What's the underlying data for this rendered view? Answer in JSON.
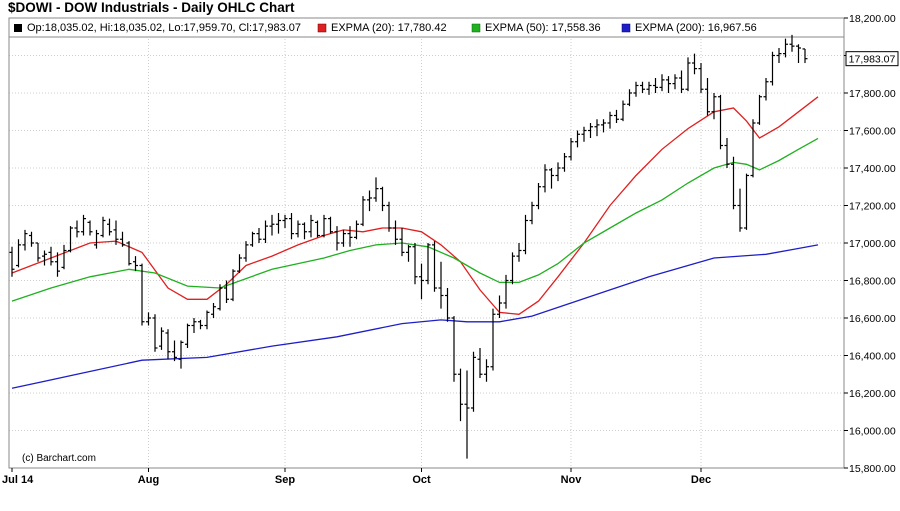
{
  "header": {
    "title": "$DOWI - DOW Industrials - Daily OHLC Chart"
  },
  "legend": {
    "ohlc_text": "Op:18,035.02, Hi:18,035.02, Lo:17,959.70, Cl:17,983.07",
    "ema20": "EXPMA (20): 17,780.42",
    "ema50": "EXPMA (50): 17,558.36",
    "ema200": "EXPMA (200): 16,967.56"
  },
  "watermark": "(c) Barchart.com",
  "last_price_label": "17,983.07",
  "chart_data": {
    "type": "ohlc",
    "ylim": [
      15800,
      18200
    ],
    "y_ticks": [
      "18,200.00",
      "18,000.00",
      "17,800.00",
      "17,600.00",
      "17,400.00",
      "17,200.00",
      "17,000.00",
      "16,800.00",
      "16,600.00",
      "16,400.00",
      "16,200.00",
      "16,000.00",
      "15,800.00"
    ],
    "x_months": [
      "Jul 14",
      "Aug",
      "Sep",
      "Oct",
      "Nov",
      "Dec"
    ],
    "month_start_index": [
      0,
      21,
      42,
      63,
      86,
      106
    ],
    "grid": true,
    "last_close": 17983.07,
    "series": [
      {
        "name": "EXPMA (20)",
        "color": "#e02020",
        "points": [
          [
            0,
            16840
          ],
          [
            6,
            16920
          ],
          [
            12,
            17000
          ],
          [
            16,
            17010
          ],
          [
            20,
            16950
          ],
          [
            24,
            16760
          ],
          [
            27,
            16700
          ],
          [
            30,
            16700
          ],
          [
            33,
            16780
          ],
          [
            36,
            16880
          ],
          [
            40,
            16930
          ],
          [
            44,
            16990
          ],
          [
            48,
            17040
          ],
          [
            51,
            17070
          ],
          [
            54,
            17060
          ],
          [
            57,
            17080
          ],
          [
            60,
            17080
          ],
          [
            63,
            17060
          ],
          [
            66,
            16990
          ],
          [
            69,
            16900
          ],
          [
            72,
            16750
          ],
          [
            75,
            16630
          ],
          [
            78,
            16620
          ],
          [
            81,
            16690
          ],
          [
            84,
            16820
          ],
          [
            88,
            17000
          ],
          [
            92,
            17200
          ],
          [
            96,
            17360
          ],
          [
            100,
            17500
          ],
          [
            104,
            17610
          ],
          [
            108,
            17700
          ],
          [
            111,
            17720
          ],
          [
            113,
            17650
          ],
          [
            115,
            17560
          ],
          [
            118,
            17620
          ],
          [
            121,
            17700
          ],
          [
            124,
            17780
          ]
        ]
      },
      {
        "name": "EXPMA (50)",
        "color": "#20b020",
        "points": [
          [
            0,
            16690
          ],
          [
            6,
            16760
          ],
          [
            12,
            16820
          ],
          [
            18,
            16860
          ],
          [
            22,
            16840
          ],
          [
            27,
            16770
          ],
          [
            32,
            16760
          ],
          [
            36,
            16810
          ],
          [
            40,
            16860
          ],
          [
            44,
            16890
          ],
          [
            48,
            16920
          ],
          [
            52,
            16960
          ],
          [
            56,
            16990
          ],
          [
            60,
            17000
          ],
          [
            64,
            16980
          ],
          [
            68,
            16920
          ],
          [
            72,
            16840
          ],
          [
            75,
            16790
          ],
          [
            78,
            16790
          ],
          [
            81,
            16830
          ],
          [
            84,
            16890
          ],
          [
            88,
            17000
          ],
          [
            92,
            17080
          ],
          [
            96,
            17160
          ],
          [
            100,
            17230
          ],
          [
            104,
            17320
          ],
          [
            108,
            17400
          ],
          [
            111,
            17430
          ],
          [
            113,
            17420
          ],
          [
            115,
            17390
          ],
          [
            118,
            17440
          ],
          [
            121,
            17500
          ],
          [
            124,
            17558
          ]
        ]
      },
      {
        "name": "EXPMA (200)",
        "color": "#1e1ec8",
        "points": [
          [
            0,
            16225
          ],
          [
            10,
            16300
          ],
          [
            20,
            16375
          ],
          [
            30,
            16390
          ],
          [
            40,
            16450
          ],
          [
            50,
            16500
          ],
          [
            60,
            16570
          ],
          [
            66,
            16590
          ],
          [
            70,
            16580
          ],
          [
            75,
            16580
          ],
          [
            80,
            16610
          ],
          [
            86,
            16680
          ],
          [
            92,
            16750
          ],
          [
            98,
            16820
          ],
          [
            104,
            16880
          ],
          [
            108,
            16920
          ],
          [
            112,
            16930
          ],
          [
            116,
            16940
          ],
          [
            120,
            16965
          ],
          [
            124,
            16990
          ]
        ]
      }
    ],
    "bars": [
      [
        16950,
        16980,
        16820,
        16860
      ],
      [
        16880,
        17020,
        16870,
        16990
      ],
      [
        16990,
        17070,
        16960,
        17050
      ],
      [
        17040,
        17060,
        16980,
        17000
      ],
      [
        17000,
        17000,
        16900,
        16920
      ],
      [
        16930,
        16960,
        16880,
        16940
      ],
      [
        16950,
        16980,
        16880,
        16900
      ],
      [
        16900,
        16950,
        16820,
        16850
      ],
      [
        16870,
        16990,
        16860,
        16960
      ],
      [
        16960,
        17090,
        16950,
        17080
      ],
      [
        17080,
        17120,
        17030,
        17060
      ],
      [
        17060,
        17150,
        17040,
        17130
      ],
      [
        17110,
        17120,
        17040,
        17060
      ],
      [
        16990,
        17070,
        16970,
        17050
      ],
      [
        17040,
        17140,
        17030,
        17120
      ],
      [
        17100,
        17130,
        17040,
        17060
      ],
      [
        17070,
        17120,
        16990,
        17020
      ],
      [
        17020,
        17060,
        16980,
        16990
      ],
      [
        17000,
        17010,
        16880,
        16890
      ],
      [
        16900,
        16930,
        16850,
        16880
      ],
      [
        16880,
        16890,
        16560,
        16580
      ],
      [
        16580,
        16630,
        16560,
        16600
      ],
      [
        16600,
        16620,
        16420,
        16440
      ],
      [
        16450,
        16550,
        16430,
        16530
      ],
      [
        16520,
        16540,
        16380,
        16420
      ],
      [
        16420,
        16480,
        16370,
        16390
      ],
      [
        16380,
        16480,
        16330,
        16470
      ],
      [
        16460,
        16570,
        16440,
        16560
      ],
      [
        16560,
        16600,
        16520,
        16580
      ],
      [
        16580,
        16590,
        16540,
        16560
      ],
      [
        16560,
        16640,
        16540,
        16630
      ],
      [
        16620,
        16680,
        16600,
        16660
      ],
      [
        16650,
        16780,
        16640,
        16760
      ],
      [
        16760,
        16800,
        16680,
        16700
      ],
      [
        16700,
        16860,
        16690,
        16850
      ],
      [
        16850,
        16940,
        16840,
        16920
      ],
      [
        16920,
        17010,
        16900,
        16990
      ],
      [
        16990,
        17060,
        16980,
        17050
      ],
      [
        17050,
        17080,
        17000,
        17020
      ],
      [
        17020,
        17120,
        17000,
        17090
      ],
      [
        17090,
        17150,
        17040,
        17100
      ],
      [
        17100,
        17160,
        17050,
        17120
      ],
      [
        17120,
        17150,
        17080,
        17130
      ],
      [
        17130,
        17160,
        17020,
        17050
      ],
      [
        17050,
        17120,
        17030,
        17100
      ],
      [
        17100,
        17110,
        17020,
        17060
      ],
      [
        17060,
        17150,
        17030,
        17120
      ],
      [
        17110,
        17120,
        17030,
        17040
      ],
      [
        17040,
        17150,
        17030,
        17130
      ],
      [
        17130,
        17140,
        17050,
        17060
      ],
      [
        17060,
        17090,
        16960,
        17000
      ],
      [
        17000,
        17070,
        16980,
        17050
      ],
      [
        17050,
        17090,
        16980,
        17030
      ],
      [
        17030,
        17120,
        17020,
        17100
      ],
      [
        17100,
        17250,
        17090,
        17230
      ],
      [
        17230,
        17280,
        17170,
        17240
      ],
      [
        17240,
        17350,
        17220,
        17290
      ],
      [
        17290,
        17300,
        17170,
        17200
      ],
      [
        17200,
        17220,
        17060,
        17080
      ],
      [
        17080,
        17120,
        16990,
        17020
      ],
      [
        17020,
        17080,
        16930,
        16950
      ],
      [
        16950,
        16990,
        16900,
        16980
      ],
      [
        16980,
        17000,
        16780,
        16820
      ],
      [
        16820,
        16890,
        16700,
        16800
      ],
      [
        16800,
        17000,
        16780,
        16990
      ],
      [
        16990,
        17010,
        16740,
        16760
      ],
      [
        16760,
        16900,
        16650,
        16720
      ],
      [
        16720,
        16760,
        16580,
        16600
      ],
      [
        16600,
        16610,
        16260,
        16300
      ],
      [
        16300,
        16330,
        16050,
        16140
      ],
      [
        16140,
        16320,
        15850,
        16120
      ],
      [
        16120,
        16420,
        16100,
        16390
      ],
      [
        16380,
        16440,
        16280,
        16300
      ],
      [
        16300,
        16380,
        16260,
        16340
      ],
      [
        16340,
        16650,
        16320,
        16620
      ],
      [
        16620,
        16720,
        16600,
        16680
      ],
      [
        16680,
        16830,
        16650,
        16800
      ],
      [
        16800,
        16950,
        16780,
        16930
      ],
      [
        16930,
        17000,
        16900,
        16960
      ],
      [
        16960,
        17150,
        16940,
        17120
      ],
      [
        17120,
        17220,
        17100,
        17200
      ],
      [
        17200,
        17320,
        17180,
        17300
      ],
      [
        17300,
        17420,
        17270,
        17390
      ],
      [
        17390,
        17400,
        17290,
        17360
      ],
      [
        17360,
        17430,
        17330,
        17400
      ],
      [
        17400,
        17480,
        17380,
        17460
      ],
      [
        17460,
        17560,
        17440,
        17540
      ],
      [
        17540,
        17600,
        17510,
        17580
      ],
      [
        17580,
        17620,
        17540,
        17600
      ],
      [
        17600,
        17640,
        17560,
        17620
      ],
      [
        17620,
        17660,
        17570,
        17630
      ],
      [
        17630,
        17660,
        17590,
        17640
      ],
      [
        17640,
        17700,
        17610,
        17680
      ],
      [
        17680,
        17710,
        17640,
        17660
      ],
      [
        17660,
        17760,
        17650,
        17740
      ],
      [
        17740,
        17820,
        17730,
        17800
      ],
      [
        17800,
        17860,
        17780,
        17840
      ],
      [
        17840,
        17860,
        17800,
        17820
      ],
      [
        17820,
        17860,
        17790,
        17840
      ],
      [
        17840,
        17880,
        17800,
        17830
      ],
      [
        17830,
        17900,
        17810,
        17870
      ],
      [
        17870,
        17890,
        17800,
        17850
      ],
      [
        17850,
        17900,
        17820,
        17880
      ],
      [
        17880,
        17920,
        17800,
        17820
      ],
      [
        17820,
        17990,
        17810,
        17960
      ],
      [
        17960,
        18010,
        17900,
        17930
      ],
      [
        17930,
        17960,
        17800,
        17820
      ],
      [
        17820,
        17880,
        17680,
        17700
      ],
      [
        17700,
        17800,
        17660,
        17780
      ],
      [
        17780,
        17790,
        17500,
        17520
      ],
      [
        17520,
        17560,
        17400,
        17420
      ],
      [
        17420,
        17460,
        17180,
        17200
      ],
      [
        17200,
        17290,
        17060,
        17080
      ],
      [
        17080,
        17370,
        17070,
        17360
      ],
      [
        17360,
        17660,
        17350,
        17640
      ],
      [
        17640,
        17790,
        17630,
        17780
      ],
      [
        17780,
        17880,
        17760,
        17860
      ],
      [
        17860,
        18020,
        17840,
        18000
      ],
      [
        18000,
        18040,
        17960,
        18010
      ],
      [
        18010,
        18090,
        17990,
        18060
      ],
      [
        18060,
        18110,
        18020,
        18050
      ],
      [
        18050,
        18060,
        17960,
        18040
      ],
      [
        18035.02,
        18035.02,
        17959.7,
        17983.07
      ]
    ]
  }
}
